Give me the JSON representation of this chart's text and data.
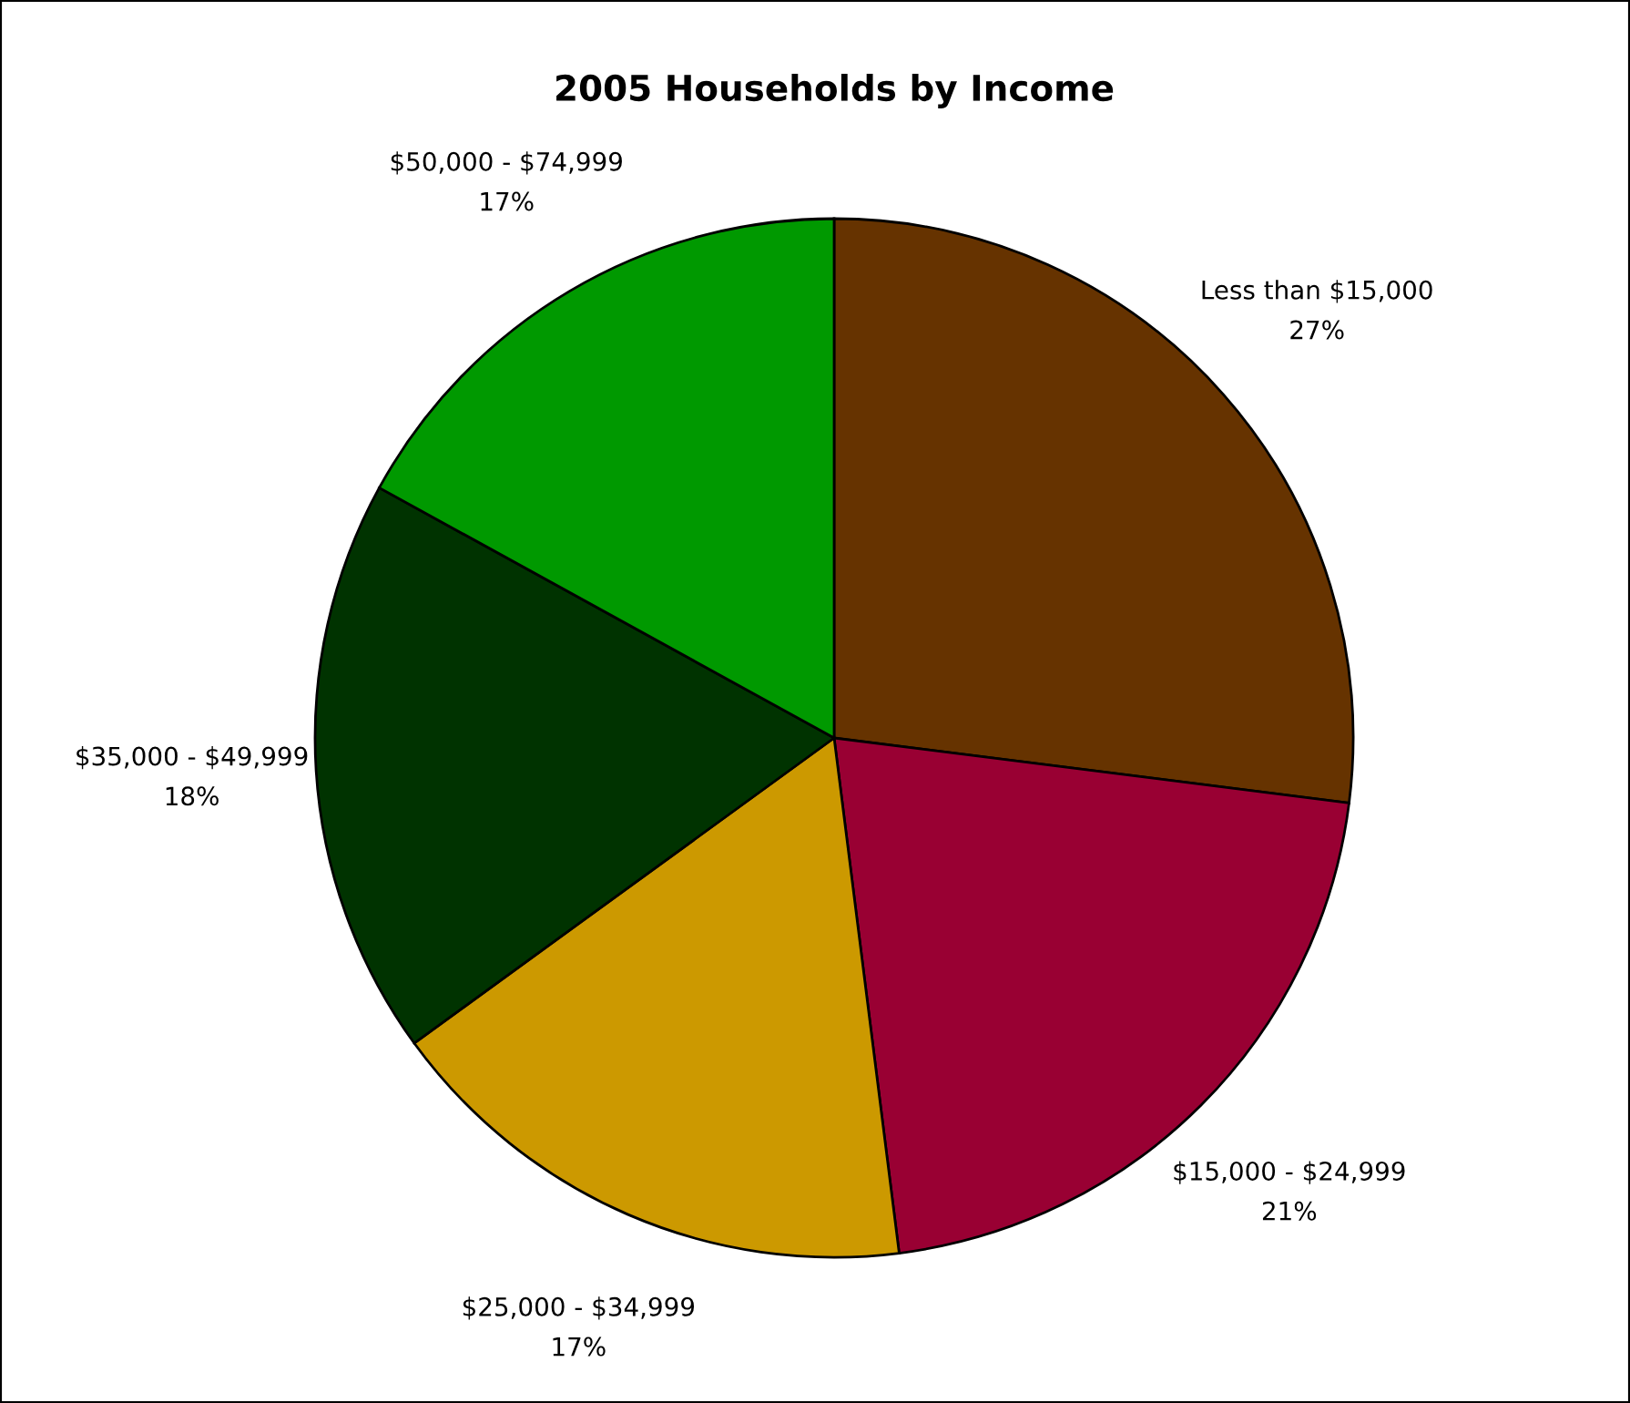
{
  "chart_data": {
    "type": "pie",
    "title": "2005 Households by Income",
    "categories": [
      "Less than $15,000",
      "$15,000 - $24,999",
      "$25,000 - $34,999",
      "$35,000 - $49,999",
      "$50,000 - $74,999"
    ],
    "values": [
      27,
      21,
      17,
      18,
      17
    ],
    "value_labels": [
      "27%",
      "21%",
      "17%",
      "18%",
      "17%"
    ],
    "colors": [
      "#663300",
      "#990033",
      "#cc9900",
      "#003300",
      "#009900"
    ]
  }
}
